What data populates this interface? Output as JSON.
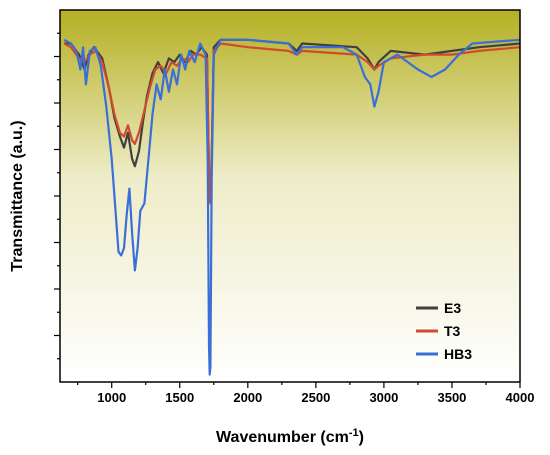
{
  "chart_data": {
    "type": "line",
    "xlabel": "Wavenumber (cm",
    "xlabel_sup": "-1",
    "xlabel_end": ")",
    "ylabel": "Transmittance (a.u.)",
    "xlim": [
      620,
      4000
    ],
    "ylim": [
      0,
      1
    ],
    "x_ticks": [
      1000,
      1500,
      2000,
      2500,
      3000,
      3500,
      4000
    ],
    "y_tick_labels": "none",
    "background_gradient": [
      "#b5b022",
      "#ffffff"
    ],
    "legend_position": "bottom-right",
    "series": [
      {
        "name": "E3",
        "color": "#404040",
        "points": [
          [
            650,
            0.91
          ],
          [
            700,
            0.91
          ],
          [
            760,
            0.88
          ],
          [
            800,
            0.84
          ],
          [
            830,
            0.88
          ],
          [
            870,
            0.9
          ],
          [
            930,
            0.87
          ],
          [
            980,
            0.79
          ],
          [
            1020,
            0.71
          ],
          [
            1060,
            0.66
          ],
          [
            1090,
            0.63
          ],
          [
            1120,
            0.67
          ],
          [
            1150,
            0.6
          ],
          [
            1170,
            0.58
          ],
          [
            1200,
            0.62
          ],
          [
            1230,
            0.7
          ],
          [
            1260,
            0.77
          ],
          [
            1300,
            0.83
          ],
          [
            1340,
            0.86
          ],
          [
            1380,
            0.83
          ],
          [
            1420,
            0.87
          ],
          [
            1460,
            0.86
          ],
          [
            1500,
            0.88
          ],
          [
            1540,
            0.86
          ],
          [
            1580,
            0.89
          ],
          [
            1620,
            0.88
          ],
          [
            1660,
            0.9
          ],
          [
            1700,
            0.88
          ],
          [
            1715,
            0.56
          ],
          [
            1725,
            0.48
          ],
          [
            1735,
            0.6
          ],
          [
            1750,
            0.9
          ],
          [
            1800,
            0.92
          ],
          [
            2000,
            0.92
          ],
          [
            2300,
            0.91
          ],
          [
            2360,
            0.89
          ],
          [
            2400,
            0.91
          ],
          [
            2800,
            0.9
          ],
          [
            2880,
            0.87
          ],
          [
            2930,
            0.84
          ],
          [
            2960,
            0.86
          ],
          [
            3050,
            0.89
          ],
          [
            3300,
            0.88
          ],
          [
            3500,
            0.89
          ],
          [
            3700,
            0.9
          ],
          [
            4000,
            0.91
          ]
        ]
      },
      {
        "name": "T3",
        "color": "#d04a30",
        "points": [
          [
            650,
            0.91
          ],
          [
            700,
            0.9
          ],
          [
            760,
            0.87
          ],
          [
            800,
            0.86
          ],
          [
            840,
            0.88
          ],
          [
            880,
            0.89
          ],
          [
            930,
            0.86
          ],
          [
            980,
            0.79
          ],
          [
            1020,
            0.72
          ],
          [
            1060,
            0.67
          ],
          [
            1090,
            0.66
          ],
          [
            1120,
            0.69
          ],
          [
            1150,
            0.65
          ],
          [
            1170,
            0.64
          ],
          [
            1200,
            0.67
          ],
          [
            1240,
            0.73
          ],
          [
            1280,
            0.79
          ],
          [
            1320,
            0.84
          ],
          [
            1360,
            0.85
          ],
          [
            1400,
            0.83
          ],
          [
            1440,
            0.86
          ],
          [
            1480,
            0.85
          ],
          [
            1520,
            0.87
          ],
          [
            1560,
            0.86
          ],
          [
            1600,
            0.88
          ],
          [
            1650,
            0.88
          ],
          [
            1700,
            0.87
          ],
          [
            1715,
            0.56
          ],
          [
            1725,
            0.48
          ],
          [
            1735,
            0.62
          ],
          [
            1750,
            0.89
          ],
          [
            1800,
            0.91
          ],
          [
            2000,
            0.9
          ],
          [
            2300,
            0.89
          ],
          [
            2360,
            0.88
          ],
          [
            2400,
            0.89
          ],
          [
            2800,
            0.88
          ],
          [
            2880,
            0.86
          ],
          [
            2930,
            0.84
          ],
          [
            2960,
            0.85
          ],
          [
            3050,
            0.87
          ],
          [
            3300,
            0.88
          ],
          [
            3500,
            0.88
          ],
          [
            3700,
            0.89
          ],
          [
            4000,
            0.9
          ]
        ]
      },
      {
        "name": "HB3",
        "color": "#3a6fd8",
        "points": [
          [
            650,
            0.92
          ],
          [
            700,
            0.91
          ],
          [
            740,
            0.89
          ],
          [
            770,
            0.84
          ],
          [
            790,
            0.9
          ],
          [
            810,
            0.8
          ],
          [
            840,
            0.89
          ],
          [
            880,
            0.9
          ],
          [
            920,
            0.85
          ],
          [
            960,
            0.74
          ],
          [
            1000,
            0.6
          ],
          [
            1030,
            0.45
          ],
          [
            1050,
            0.35
          ],
          [
            1070,
            0.34
          ],
          [
            1090,
            0.36
          ],
          [
            1110,
            0.45
          ],
          [
            1130,
            0.52
          ],
          [
            1150,
            0.4
          ],
          [
            1170,
            0.3
          ],
          [
            1190,
            0.36
          ],
          [
            1210,
            0.46
          ],
          [
            1240,
            0.48
          ],
          [
            1270,
            0.6
          ],
          [
            1300,
            0.72
          ],
          [
            1330,
            0.8
          ],
          [
            1360,
            0.76
          ],
          [
            1390,
            0.84
          ],
          [
            1420,
            0.78
          ],
          [
            1450,
            0.84
          ],
          [
            1480,
            0.8
          ],
          [
            1510,
            0.88
          ],
          [
            1540,
            0.84
          ],
          [
            1570,
            0.89
          ],
          [
            1610,
            0.86
          ],
          [
            1650,
            0.91
          ],
          [
            1690,
            0.88
          ],
          [
            1705,
            0.6
          ],
          [
            1715,
            0.1
          ],
          [
            1720,
            0.02
          ],
          [
            1725,
            0.04
          ],
          [
            1735,
            0.55
          ],
          [
            1750,
            0.88
          ],
          [
            1800,
            0.92
          ],
          [
            2000,
            0.92
          ],
          [
            2300,
            0.91
          ],
          [
            2360,
            0.88
          ],
          [
            2400,
            0.9
          ],
          [
            2700,
            0.9
          ],
          [
            2800,
            0.88
          ],
          [
            2860,
            0.82
          ],
          [
            2900,
            0.8
          ],
          [
            2930,
            0.74
          ],
          [
            2960,
            0.78
          ],
          [
            3000,
            0.86
          ],
          [
            3100,
            0.88
          ],
          [
            3250,
            0.84
          ],
          [
            3350,
            0.82
          ],
          [
            3450,
            0.84
          ],
          [
            3550,
            0.88
          ],
          [
            3650,
            0.91
          ],
          [
            4000,
            0.92
          ]
        ]
      }
    ]
  }
}
